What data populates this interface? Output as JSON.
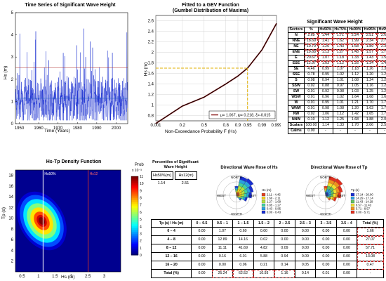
{
  "timeseries": {
    "title": "Time Series of Significant Wave Height",
    "ylabel": "Hs (m)",
    "xlabel": "Time (Years)",
    "xticks": [
      "1950",
      "1960",
      "1970",
      "1980",
      "1990",
      "2000"
    ],
    "yticks": [
      "0",
      "1",
      "2",
      "3",
      "4",
      "5"
    ]
  },
  "gev": {
    "title1": "Fitted to a GEV Function",
    "title2": "(Gumbel Distribution of Maxima)",
    "ylabel": "Hs (m)",
    "xlabel": "Non-Exceedance Probability F (Hs)",
    "xticks": [
      "0.001",
      "0.2",
      "0.5",
      "0.8",
      "0.9",
      "0.95",
      "0.99",
      "0.999"
    ],
    "yticks": [
      "0.8",
      "1",
      "1.2",
      "1.4",
      "1.6",
      "1.8",
      "2",
      "2.2",
      "2.4",
      "2.6"
    ],
    "legend": "μ= 1.067, ψ= 0.218, ξ=-0.015"
  },
  "density": {
    "title": "Hs-Tp Density Function",
    "ylabel": "Tp (s)",
    "xlabel": "Hs (m)",
    "xticks": [
      "0.5",
      "1",
      "1.5",
      "2",
      "2.5",
      "3"
    ],
    "yticks": [
      "2",
      "4",
      "6",
      "8",
      "10",
      "12",
      "14",
      "16",
      "18"
    ],
    "line1": "Hs50%",
    "line2": "Hs12",
    "colorbar_title": "Prob",
    "colorbar_exp": "x 10⁻³",
    "colorbar_ticks": [
      "0",
      "1",
      "2",
      "3",
      "4",
      "5",
      "6",
      "7",
      "8",
      "9",
      "10",
      "11"
    ]
  },
  "percentiles": {
    "title1": "Percentiles of Significant",
    "title2": "Wave Height",
    "h1": "Hs50%(m)",
    "h2": "Hs12(m)",
    "v1": "1.14",
    "v2": "2.51"
  },
  "rose_hs": {
    "title": "Directional Wave Rose of Hs",
    "labels": {
      "n": "NORTH",
      "s": "SOUTH",
      "e": "EAST",
      "w": "WEST"
    },
    "legend_title": "Hs (m)",
    "legend": [
      "2.11 - 4.45",
      "1.69 - 2.11",
      "1.27 - 1.69",
      "0.85 - 1.27",
      "0.43 - 0.85",
      "0.00 - 0.43"
    ]
  },
  "rose_tp": {
    "title": "Directional Wave Rose of Tp",
    "labels": {
      "n": "NORTH",
      "s": "SOUTH",
      "e": "EAST",
      "w": "WEST"
    },
    "legend_title": "Tp (s)",
    "legend": [
      "17.14 - 20.00",
      "14.29 - 17.14",
      "11.43 - 14.29",
      "8.57 - 11.43",
      "5.71 - 8.57",
      "0.00 - 5.71"
    ]
  },
  "sectors_table": {
    "title": "Significant Wave Height",
    "headers": [
      "Sectors",
      "%",
      "Hs50%",
      "Hs75%",
      "Hs90%",
      "Hs95%",
      "Hs99%"
    ],
    "rows": [
      [
        "N",
        "2.69",
        "1.44",
        "1.71",
        "2.24",
        "2.51",
        "2.69"
      ],
      [
        "NNE",
        "18.69",
        "1.41",
        "1.62",
        "1.99",
        "2.34",
        "2.77"
      ],
      [
        "NE",
        "19.79",
        "1.26",
        "1.43",
        "1.68",
        "1.89",
        "2.35"
      ],
      [
        "ENE",
        "19.68",
        "1.13",
        "1.27",
        "1.45",
        "1.57",
        "1.70"
      ],
      [
        "E",
        "20.67",
        "1.07",
        "1.18",
        "1.33",
        "1.43",
        "1.53"
      ],
      [
        "ESE",
        "12.97",
        "1.03",
        "1.12",
        "1.25",
        "1.34",
        "1.43"
      ],
      [
        "SE",
        "4.46",
        "0.99",
        "1.07",
        "1.18",
        "1.26",
        "1.35"
      ],
      [
        "SSE",
        "0.78",
        "0.95",
        "1.02",
        "1.12",
        "1.20",
        "1.27"
      ],
      [
        "S",
        "0.08",
        "0.94",
        "1.01",
        "1.08",
        "1.24",
        "1.29"
      ],
      [
        "SSW",
        "0.02",
        "0.88",
        "0.97",
        "1.05",
        "1.16",
        "1.23"
      ],
      [
        "SW",
        "0.01",
        "0.92",
        "0.98",
        "1.03",
        "1.25",
        "1.25"
      ],
      [
        "WSW",
        "0.01",
        "0.96",
        "1.02",
        "1.64",
        "1.68",
        "1.68"
      ],
      [
        "W",
        "0.01",
        "0.95",
        "1.01",
        "1.21",
        "1.70",
        "1.70"
      ],
      [
        "WNW",
        "0.01",
        "0.98",
        "1.08",
        "1.20",
        "1.63",
        "1.70"
      ],
      [
        "NW",
        "0.02",
        "1.06",
        "1.12",
        "1.42",
        "1.65",
        "1.70"
      ],
      [
        "NNW",
        "0.10",
        "1.12",
        "1.25",
        "1.68",
        "1.88",
        "2.01"
      ],
      [
        "Scalars",
        "100.00",
        "1.14",
        "1.33",
        "1.70",
        "2.06",
        "2.51"
      ],
      [
        "Calms",
        "0.00",
        "-",
        "-",
        "-",
        "-",
        "-"
      ]
    ]
  },
  "joint_table": {
    "headers": [
      "Tp (s) \\ Hs (m)",
      "0 – 0.5",
      "0.5 – 1",
      "1 – 1.5",
      "1.5 – 2",
      "2 – 2.5",
      "2.5 – 3",
      "3 – 3.5",
      "3.5 – 4",
      "Total (%)"
    ],
    "rows": [
      [
        "0 – 4",
        "0.00",
        "1.07",
        "0.60",
        "0.00",
        "0.00",
        "0.00",
        "0.00",
        "0.00",
        "1.66"
      ],
      [
        "4 – 8",
        "0.00",
        "12.89",
        "14.16",
        "0.02",
        "0.00",
        "0.00",
        "0.00",
        "0.00",
        "27.07"
      ],
      [
        "8 – 12",
        "0.00",
        "11.11",
        "41.69",
        "4.82",
        "0.09",
        "0.00",
        "0.00",
        "0.00",
        "57.71"
      ],
      [
        "12 – 16",
        "0.00",
        "0.16",
        "6.01",
        "5.88",
        "0.94",
        "0.09",
        "0.00",
        "0.00",
        "13.08"
      ],
      [
        "16 – 20",
        "0.00",
        "0.00",
        "0.06",
        "0.21",
        "0.14",
        "0.05",
        "0.00",
        "0.00",
        "0.47"
      ],
      [
        "Total (%)",
        "0.00",
        "25.24",
        "62.52",
        "10.93",
        "1.16",
        "0.14",
        "0.01",
        "0.00",
        "-"
      ]
    ]
  },
  "chart_data": [
    {
      "type": "line",
      "title": "Time Series of Significant Wave Height",
      "xlabel": "Time (Years)",
      "ylabel": "Hs (m)",
      "xlim": [
        1948,
        2006
      ],
      "ylim": [
        0,
        5
      ],
      "series": [
        {
          "values_summary": "dense hourly series oscillating mostly 0.5–2.5 m with peaks near 4.5 m"
        }
      ],
      "reference_lines": [
        1.14,
        2.51
      ]
    },
    {
      "type": "line",
      "title": "Fitted to a GEV Function (Gumbel Distribution of Maxima)",
      "xlabel": "Non-Exceedance Probability F (Hs)",
      "ylabel": "Hs (m)",
      "ylim": [
        0.7,
        2.7
      ],
      "x": [
        0.001,
        0.2,
        0.5,
        0.8,
        0.9,
        0.95,
        0.99,
        0.999
      ],
      "y": [
        0.65,
        0.98,
        1.15,
        1.4,
        1.55,
        1.7,
        2.05,
        2.55
      ],
      "marked_point": [
        0.95,
        1.7
      ]
    },
    {
      "type": "heatmap",
      "title": "Hs-Tp Density Function",
      "xlabel": "Hs (m)",
      "ylabel": "Tp (s)",
      "xlim": [
        0.3,
        3.5
      ],
      "ylim": [
        0,
        19
      ],
      "peak": {
        "hs": 1.1,
        "tp": 9.5,
        "prob": 0.011
      }
    },
    {
      "type": "table",
      "title": "Significant Wave Height"
    }
  ]
}
